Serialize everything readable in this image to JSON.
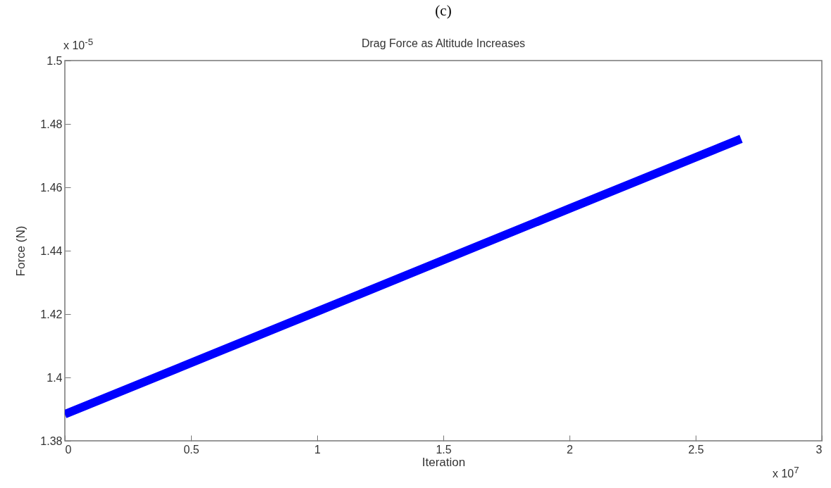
{
  "chart_data": {
    "type": "line",
    "title": "(c)",
    "subtitle": "Drag Force as Altitude Increases",
    "xlabel": "Iteration",
    "ylabel": "Force (N)",
    "x": [
      0,
      1,
      2,
      2.68
    ],
    "series": [
      {
        "color": "#0000ff",
        "values": [
          1.3884,
          1.4208,
          1.4533,
          1.4753
        ]
      }
    ],
    "xlim": [
      0,
      3
    ],
    "xticks": [
      0,
      0.5,
      1,
      1.5,
      2,
      2.5,
      3
    ],
    "ylim": [
      1.38,
      1.5
    ],
    "yticks": [
      1.38,
      1.4,
      1.42,
      1.44,
      1.46,
      1.48,
      1.5
    ],
    "annotations": [
      "x 10$^{-5}$",
      "x 10$^{7}$"
    ],
    "grid": false,
    "marker": "none",
    "line_style": "solid"
  }
}
